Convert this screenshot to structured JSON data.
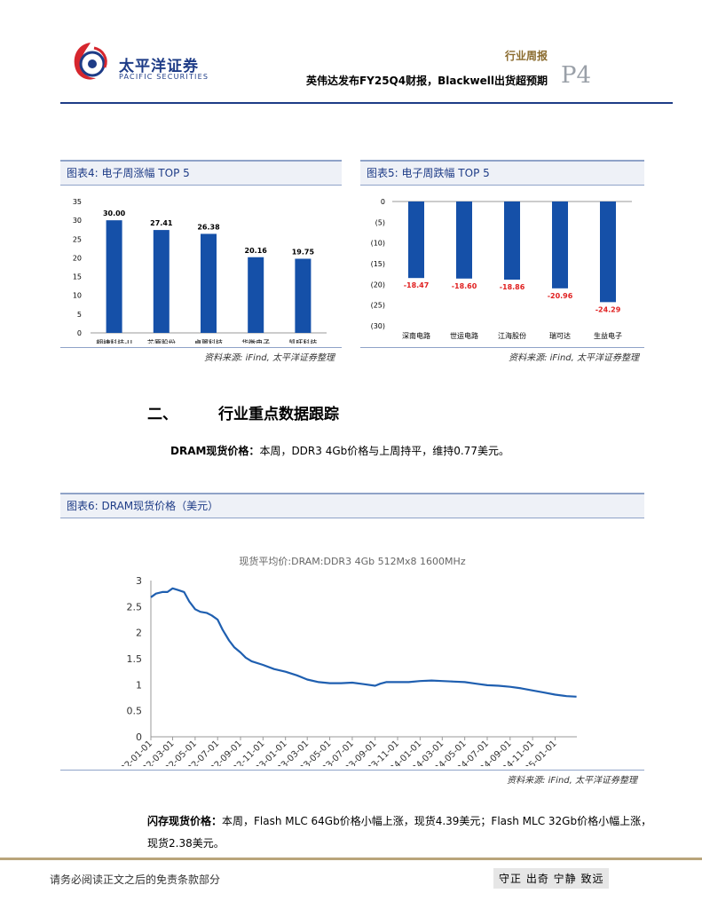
{
  "header": {
    "brand_cn": "太平洋证券",
    "brand_en": "PACIFIC SECURITIES",
    "report_type": "行业周报",
    "report_title": "英伟达发布FY25Q4财报，Blackwell出货超预期",
    "page_number": "P4",
    "colors": {
      "brand": "#1e3c87",
      "logo_red": "#d6262e"
    }
  },
  "fig4": {
    "title": "图表4: 电子周涨幅 TOP 5",
    "source": "资料来源: iFind, 太平洋证券整理",
    "chart_data": {
      "type": "bar",
      "categories": [
        "翱捷科技-U",
        "芯原股份",
        "卓翼科技",
        "华微电子",
        "凯旺科技"
      ],
      "values": [
        30.0,
        27.41,
        26.38,
        20.16,
        19.75
      ],
      "data_labels": [
        "30.00",
        "27.41",
        "26.38",
        "20.16",
        "19.75"
      ],
      "yticks": [
        "0",
        "5",
        "10",
        "15",
        "20",
        "25",
        "30",
        "35"
      ],
      "ylim": [
        0,
        35
      ],
      "bar_color": "#1550a8",
      "grid": false
    }
  },
  "fig5": {
    "title": "图表5: 电子周跌幅 TOP 5",
    "source": "资料来源: iFind, 太平洋证券整理",
    "chart_data": {
      "type": "bar",
      "categories": [
        "深南电路",
        "世运电路",
        "江海股份",
        "瑞可达",
        "生益电子"
      ],
      "values": [
        -18.47,
        -18.6,
        -18.86,
        -20.96,
        -24.29
      ],
      "data_labels": [
        "-18.47",
        "-18.60",
        "-18.86",
        "-20.96",
        "-24.29"
      ],
      "yticks": [
        "0",
        "(5)",
        "(10)",
        "(15)",
        "(20)",
        "(25)",
        "(30)"
      ],
      "ylim": [
        -30,
        0
      ],
      "bar_color": "#1550a8",
      "label_color": "#e02020",
      "grid": false
    }
  },
  "section": {
    "number": "二、",
    "title": "行业重点数据跟踪"
  },
  "dram_para": {
    "label": "DRAM现货价格：",
    "text": "本周，DDR3 4Gb价格与上周持平，维持0.77美元。"
  },
  "fig6": {
    "title": "图表6: DRAM现货价格（美元）",
    "source": "资料来源: iFind, 太平洋证券整理",
    "chart_data": {
      "type": "line",
      "title": "现货平均价:DRAM:DDR3 4Gb 512Mx8 1600MHz",
      "xticks": [
        "2022-01-01",
        "2022-03-01",
        "2022-05-01",
        "2022-07-01",
        "2022-09-01",
        "2022-11-01",
        "2023-01-01",
        "2023-03-01",
        "2023-05-01",
        "2023-07-01",
        "2023-09-01",
        "2023-11-01",
        "2024-01-01",
        "2024-03-01",
        "2024-05-01",
        "2024-07-01",
        "2024-09-01",
        "2024-11-01",
        "2025-01-01"
      ],
      "yticks": [
        "0",
        "0.5",
        "1",
        "1.5",
        "2",
        "2.5",
        "3"
      ],
      "ylim": [
        0,
        3
      ],
      "line_color": "#1f5fb0",
      "series": [
        {
          "x": [
            "2022-01-01",
            "2022-01-15",
            "2022-02-01",
            "2022-02-15",
            "2022-03-01",
            "2022-03-15",
            "2022-04-01",
            "2022-04-15",
            "2022-05-01",
            "2022-05-15",
            "2022-06-01",
            "2022-06-15",
            "2022-07-01",
            "2022-07-15",
            "2022-08-01",
            "2022-08-15",
            "2022-09-01",
            "2022-09-15",
            "2022-10-01",
            "2022-11-01",
            "2022-12-01",
            "2023-01-01",
            "2023-02-01",
            "2023-03-01",
            "2023-04-01",
            "2023-05-01",
            "2023-06-01",
            "2023-07-01",
            "2023-08-01",
            "2023-09-01",
            "2023-09-15",
            "2023-10-01",
            "2023-11-01",
            "2023-12-01",
            "2024-01-01",
            "2024-02-01",
            "2024-03-01",
            "2024-04-01",
            "2024-05-01",
            "2024-06-01",
            "2024-07-01",
            "2024-08-01",
            "2024-09-01",
            "2024-10-01",
            "2024-11-01",
            "2024-12-01",
            "2025-01-01",
            "2025-02-01",
            "2025-02-28"
          ],
          "values": [
            2.68,
            2.75,
            2.78,
            2.78,
            2.85,
            2.82,
            2.78,
            2.6,
            2.45,
            2.4,
            2.38,
            2.33,
            2.25,
            2.05,
            1.85,
            1.72,
            1.62,
            1.52,
            1.45,
            1.38,
            1.3,
            1.25,
            1.18,
            1.1,
            1.05,
            1.03,
            1.03,
            1.04,
            1.01,
            0.98,
            1.02,
            1.05,
            1.05,
            1.05,
            1.07,
            1.08,
            1.07,
            1.06,
            1.05,
            1.02,
            0.99,
            0.98,
            0.96,
            0.93,
            0.89,
            0.85,
            0.81,
            0.78,
            0.77
          ]
        }
      ]
    }
  },
  "flash_para": {
    "label": "闪存现货价格：",
    "text": "本周，Flash MLC 64Gb价格小幅上涨，现货4.39美元；Flash MLC 32Gb价格小幅上涨，现货2.38美元。"
  },
  "footer": {
    "disclaimer": "请务必阅读正文之后的免责条款部分",
    "slogan": "守正 出奇 宁静 致远"
  }
}
